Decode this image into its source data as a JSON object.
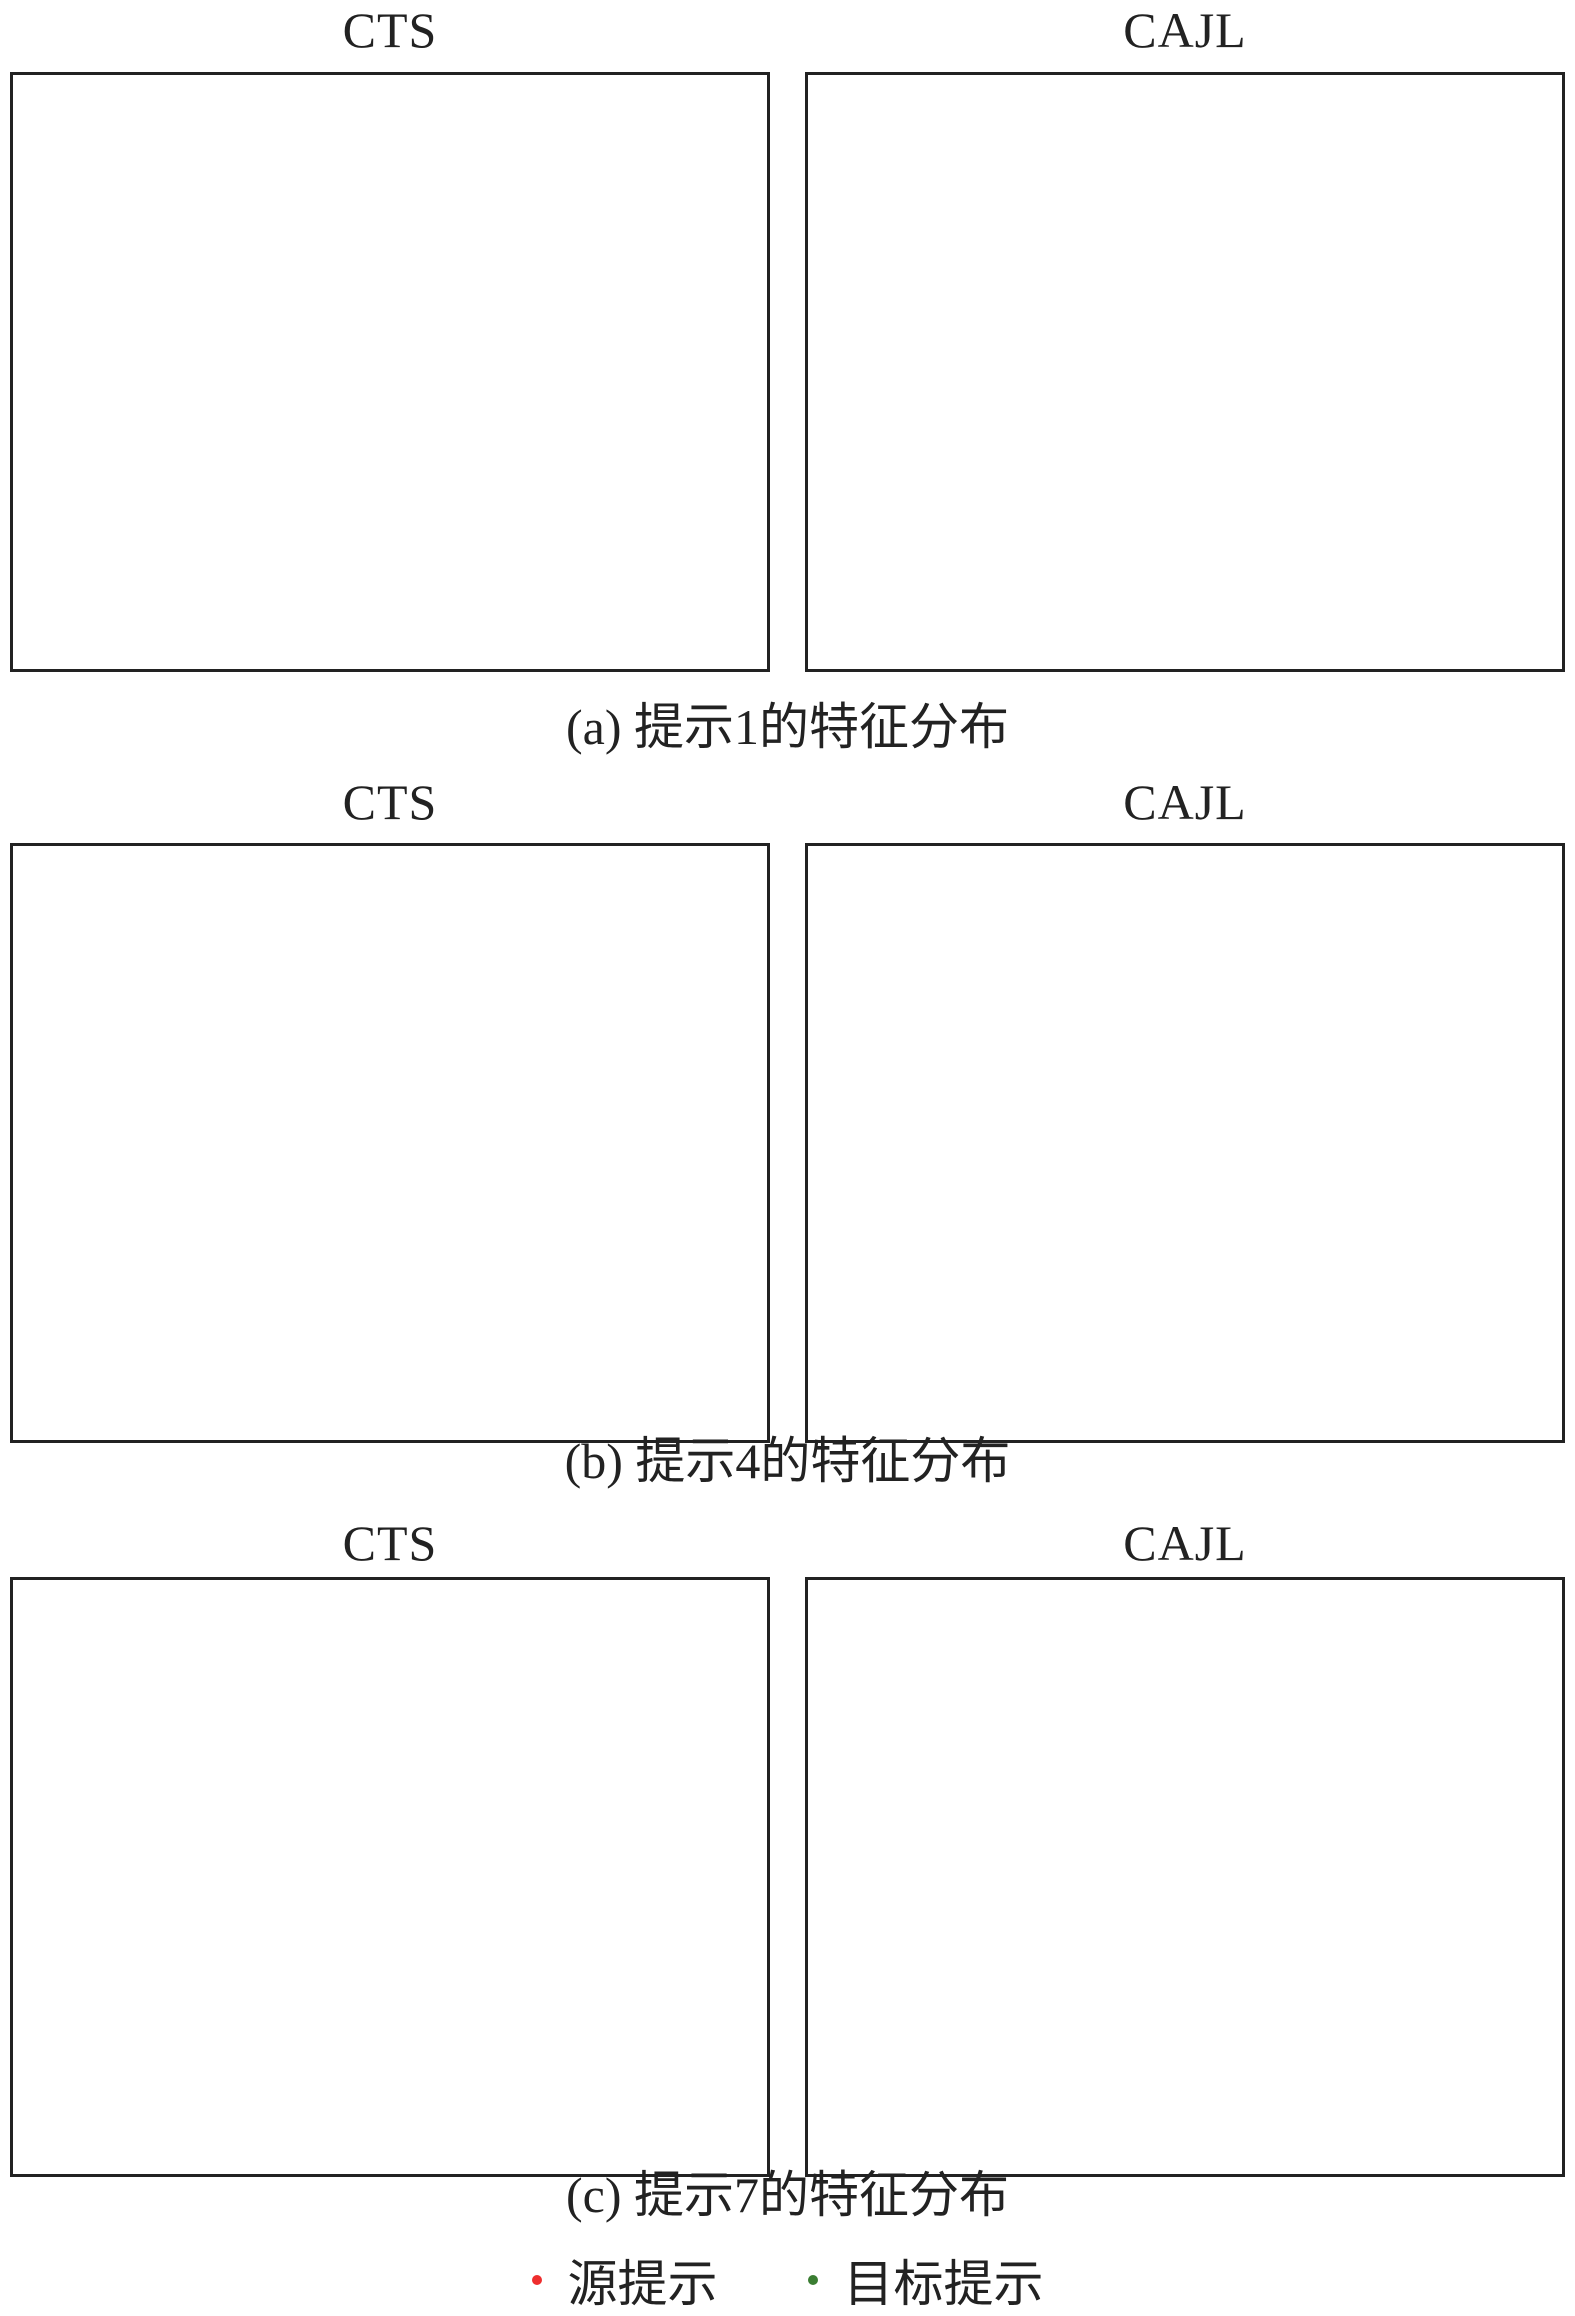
{
  "colors": {
    "source": "#ee2d2d",
    "target": "#3a7d32"
  },
  "rows": [
    {
      "caption": "(a)  提示1的特征分布"
    },
    {
      "caption": "(b)  提示4的特征分布"
    },
    {
      "caption": "(c)  提示7的特征分布"
    }
  ],
  "legend": {
    "source_label": "源提示",
    "target_label": "目标提示"
  },
  "chart_data": [
    {
      "type": "scatter",
      "title": "CTS",
      "xlabel": "",
      "ylabel": "",
      "grid": false,
      "legend": "bottom",
      "series": [
        {
          "name": "源提示",
          "color": "#ee2d2d",
          "points": []
        },
        {
          "name": "目标提示",
          "color": "#3a7d32",
          "points": []
        }
      ]
    },
    {
      "type": "scatter",
      "title": "CAJL",
      "xlabel": "",
      "ylabel": "",
      "grid": false,
      "legend": "bottom",
      "series": [
        {
          "name": "源提示",
          "color": "#ee2d2d",
          "points": []
        },
        {
          "name": "目标提示",
          "color": "#3a7d32",
          "points": []
        }
      ]
    },
    {
      "type": "scatter",
      "title": "CTS",
      "xlabel": "",
      "ylabel": "",
      "grid": false,
      "legend": "bottom",
      "series": [
        {
          "name": "源提示",
          "color": "#ee2d2d",
          "points": []
        },
        {
          "name": "目标提示",
          "color": "#3a7d32",
          "points": []
        }
      ]
    },
    {
      "type": "scatter",
      "title": "CAJL",
      "xlabel": "",
      "ylabel": "",
      "grid": false,
      "legend": "bottom",
      "series": [
        {
          "name": "源提示",
          "color": "#ee2d2d",
          "points": []
        },
        {
          "name": "目标提示",
          "color": "#3a7d32",
          "points": []
        }
      ]
    },
    {
      "type": "scatter",
      "title": "CTS",
      "xlabel": "",
      "ylabel": "",
      "grid": false,
      "legend": "bottom",
      "series": [
        {
          "name": "源提示",
          "color": "#ee2d2d",
          "points": []
        },
        {
          "name": "目标提示",
          "color": "#3a7d32",
          "points": []
        }
      ]
    },
    {
      "type": "scatter",
      "title": "CAJL",
      "xlabel": "",
      "ylabel": "",
      "grid": false,
      "legend": "bottom",
      "series": [
        {
          "name": "源提示",
          "color": "#ee2d2d",
          "points": []
        },
        {
          "name": "目标提示",
          "color": "#3a7d32",
          "points": []
        }
      ]
    }
  ]
}
